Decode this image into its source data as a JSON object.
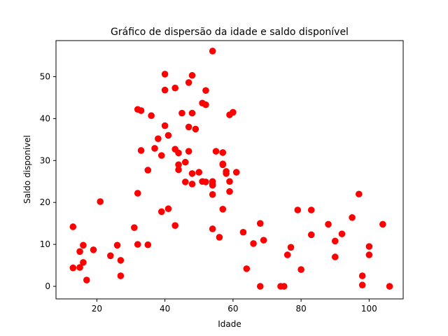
{
  "chart_data": {
    "type": "scatter",
    "title": "Gráfico de dispersão da idade e saldo disponível",
    "xlabel": "Idade",
    "ylabel": "Saldo disponível",
    "xlim": [
      8,
      110
    ],
    "ylim": [
      -3,
      58.6
    ],
    "xticks": [
      20,
      40,
      60,
      80,
      100
    ],
    "yticks": [
      0,
      10,
      20,
      30,
      40,
      50
    ],
    "grid": false,
    "marker_color": "#ff0000",
    "series": [
      {
        "x": [
          13,
          13,
          15,
          15,
          16,
          16,
          17,
          19,
          21,
          24,
          26,
          27,
          27,
          31,
          32,
          32,
          32,
          33,
          33,
          35,
          35,
          36,
          37,
          38,
          39,
          39,
          40,
          40,
          40,
          41,
          41,
          43,
          43,
          43,
          44,
          44,
          44,
          45,
          46,
          46,
          47,
          47,
          47,
          48,
          48,
          48,
          48,
          49,
          50,
          51,
          51,
          52,
          52,
          52,
          54,
          54,
          54,
          54,
          54,
          54,
          55,
          56,
          57,
          57,
          57,
          57,
          58,
          58,
          59,
          59,
          59,
          60,
          61,
          63,
          64,
          66,
          68,
          68,
          69,
          74,
          75,
          76,
          77,
          79,
          80,
          83,
          83,
          88,
          90,
          90,
          92,
          95,
          97,
          98,
          98,
          100,
          100,
          104,
          106
        ],
        "y": [
          14.2,
          4.4,
          8.3,
          4.5,
          9.8,
          5.7,
          1.5,
          8.7,
          20.2,
          7.3,
          9.8,
          6.2,
          2.5,
          14.0,
          22.2,
          42.2,
          10.0,
          41.9,
          32.4,
          27.7,
          9.9,
          40.7,
          32.9,
          35.2,
          31.2,
          17.8,
          50.6,
          46.8,
          38.3,
          36.0,
          18.5,
          47.3,
          32.7,
          14.5,
          29.0,
          27.8,
          31.8,
          41.3,
          24.9,
          29.6,
          48.6,
          38.0,
          32.2,
          50.3,
          41.3,
          26.9,
          24.4,
          37.5,
          27.2,
          43.7,
          25.0,
          43.3,
          46.7,
          24.9,
          56.1,
          25.0,
          24.4,
          24.1,
          21.9,
          13.7,
          32.2,
          11.7,
          31.9,
          29.2,
          29.0,
          18.4,
          27.4,
          26.9,
          22.6,
          25.0,
          40.9,
          41.5,
          27.2,
          12.9,
          4.2,
          10.2,
          15.0,
          0.0,
          11.0,
          0.0,
          0.0,
          7.5,
          9.3,
          18.2,
          4.0,
          18.2,
          12.3,
          14.8,
          10.8,
          7.0,
          12.5,
          16.4,
          22.0,
          2.5,
          0.3,
          9.5,
          7.5,
          14.8,
          0.0
        ]
      }
    ]
  }
}
